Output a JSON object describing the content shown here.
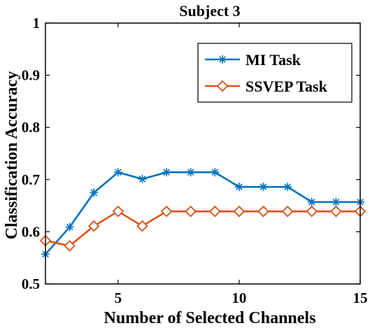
{
  "chart_data": {
    "type": "line",
    "title": "Subject 3",
    "xlabel": "Number of Selected Channels",
    "ylabel": "Classification Accuracy",
    "xlim": [
      2,
      15
    ],
    "ylim": [
      0.5,
      1
    ],
    "xticks": [
      5,
      10,
      15
    ],
    "xtick_labels": [
      "5",
      "10",
      "15"
    ],
    "yticks": [
      0.5,
      0.6,
      0.7,
      0.8,
      0.9,
      1
    ],
    "ytick_labels": [
      "0.5",
      "0.6",
      "0.7",
      "0.8",
      "0.9",
      "1"
    ],
    "grid": false,
    "legend_position": "top-right",
    "x": [
      2,
      3,
      4,
      5,
      6,
      7,
      8,
      9,
      10,
      11,
      12,
      13,
      14,
      15
    ],
    "series": [
      {
        "name": "MI Task",
        "color": "#0072BD",
        "marker": "asterisk",
        "values": [
          0.557,
          0.609,
          0.675,
          0.714,
          0.701,
          0.714,
          0.714,
          0.714,
          0.686,
          0.686,
          0.686,
          0.657,
          0.657,
          0.657
        ]
      },
      {
        "name": "SSVEP Task",
        "color": "#D95319",
        "marker": "diamond",
        "values": [
          0.583,
          0.573,
          0.611,
          0.639,
          0.611,
          0.639,
          0.639,
          0.639,
          0.639,
          0.639,
          0.639,
          0.639,
          0.639,
          0.639
        ]
      }
    ]
  }
}
